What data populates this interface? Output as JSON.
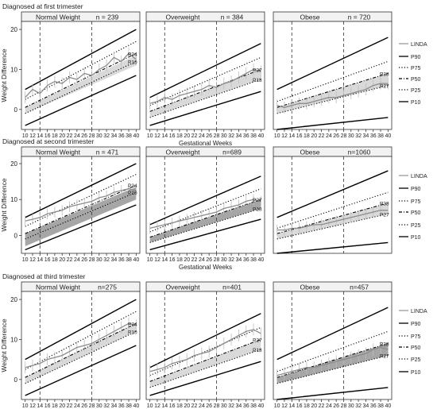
{
  "figure": {
    "ylabel": "Weight Difference",
    "xlabel": "Gestational Weeks"
  },
  "legend": {
    "items": [
      {
        "label": "LINDA",
        "style": "linda",
        "color": "#999999"
      },
      {
        "label": "P90",
        "style": "solid",
        "color": "#000000"
      },
      {
        "label": "P75",
        "style": "dotted",
        "color": "#000000"
      },
      {
        "label": "P50",
        "style": "dashdot",
        "color": "#000000"
      },
      {
        "label": "P25",
        "style": "dotted",
        "color": "#000000"
      },
      {
        "label": "P10",
        "style": "solid",
        "color": "#000000"
      }
    ]
  },
  "colors": {
    "band_light": "#d9d9d9",
    "band_dark": "#a6a6a6",
    "linda": "#8c8c8c",
    "linda_error": "#bdbdbd",
    "header_bg": "#f2f2f2"
  },
  "chart_data": [
    {
      "type": "line",
      "row_title": "Diagnosed at first trimester",
      "panel_title": "Normal Weight",
      "n_label": "n = 239",
      "x": [
        10,
        12,
        14,
        16,
        18,
        20,
        22,
        24,
        26,
        28,
        30,
        32,
        34,
        36,
        38,
        40
      ],
      "ylim": [
        -5,
        22
      ],
      "yticks": [
        "20",
        "10",
        "0"
      ],
      "vlines": [
        14,
        28
      ],
      "percentiles": {
        "P90": [
          5,
          20
        ],
        "P75": [
          2.5,
          17
        ],
        "P50": [
          0.5,
          14
        ],
        "P25": [
          -1,
          12
        ],
        "P10": [
          -4,
          8.5
        ]
      },
      "band": {
        "lower": [
          -1,
          11
        ],
        "upper": [
          0.5,
          13.5
        ],
        "shade": "light"
      },
      "linda": [
        3,
        5,
        4,
        6,
        7,
        6.5,
        8,
        7.5,
        9,
        8.5,
        10,
        11,
        13,
        12,
        14,
        12.5
      ],
      "end_labels": [
        "P34",
        "P10"
      ],
      "show_xticks": true
    },
    {
      "type": "line",
      "row_title": "",
      "panel_title": "Overweight",
      "n_label": "n = 384",
      "x": [
        10,
        12,
        14,
        16,
        18,
        20,
        22,
        24,
        26,
        28,
        30,
        32,
        34,
        36,
        38,
        40
      ],
      "ylim": [
        -5,
        22
      ],
      "yticks": [],
      "vlines": [
        14,
        28
      ],
      "percentiles": {
        "P90": [
          3,
          16.5
        ],
        "P75": [
          1,
          13
        ],
        "P50": [
          -0.5,
          10
        ],
        "P25": [
          -2,
          7.5
        ],
        "P10": [
          -4,
          4.5
        ]
      },
      "band": {
        "lower": [
          -2,
          7.5
        ],
        "upper": [
          -0.5,
          10
        ],
        "shade": "light"
      },
      "linda": [
        1.5,
        2,
        3,
        2.5,
        3.5,
        4,
        4.5,
        5,
        6,
        5.5,
        6.5,
        7,
        8,
        9,
        10,
        9.5
      ],
      "end_labels": [
        "P27",
        "P18"
      ],
      "show_xticks": true
    },
    {
      "type": "line",
      "row_title": "",
      "panel_title": "Obese",
      "n_label": "n = 720",
      "x": [
        10,
        12,
        14,
        16,
        18,
        20,
        22,
        24,
        26,
        28,
        30,
        32,
        34,
        36,
        38,
        40
      ],
      "ylim": [
        -5,
        22
      ],
      "yticks": [],
      "vlines": [
        14,
        28
      ],
      "percentiles": {
        "P90": [
          5,
          18
        ],
        "P75": [
          2,
          12
        ],
        "P50": [
          0.5,
          9
        ],
        "P25": [
          -1,
          6
        ],
        "P10": [
          -5,
          -2
        ]
      },
      "band": {
        "lower": [
          -1,
          6
        ],
        "upper": [
          0.5,
          9
        ],
        "shade": "light"
      },
      "linda": [
        1,
        0.5,
        1,
        1.5,
        1.5,
        2,
        2.5,
        3,
        3,
        3.5,
        4,
        4.5,
        5,
        6,
        6.5,
        6.5
      ],
      "end_labels": [
        "P38",
        "P27"
      ],
      "show_xticks": true
    },
    {
      "type": "line",
      "row_title": "Diagnosed at second trimester",
      "panel_title": "Normal Weight",
      "n_label": "n = 471",
      "x": [
        10,
        12,
        14,
        16,
        18,
        20,
        22,
        24,
        26,
        28,
        30,
        32,
        34,
        36,
        38,
        40
      ],
      "ylim": [
        -5,
        22
      ],
      "yticks": [
        "20",
        "10",
        "0"
      ],
      "vlines": [
        14,
        28
      ],
      "percentiles": {
        "P90": [
          5,
          20
        ],
        "P75": [
          2.5,
          17
        ],
        "P50": [
          0.5,
          14
        ],
        "P25": [
          -1,
          12
        ],
        "P10": [
          -4,
          8.5
        ]
      },
      "band": {
        "lower": [
          -3,
          10
        ],
        "upper": [
          0.5,
          13.5
        ],
        "shade": "dark"
      },
      "linda": [
        4,
        4.5,
        5,
        6,
        6.5,
        7,
        8,
        8.5,
        9,
        9.5,
        10.5,
        11,
        12,
        12.5,
        13,
        12.5
      ],
      "end_labels": [
        "P34",
        "P10"
      ],
      "show_xticks": true
    },
    {
      "type": "line",
      "row_title": "",
      "panel_title": "Overweight",
      "n_label": "n=689",
      "x": [
        10,
        12,
        14,
        16,
        18,
        20,
        22,
        24,
        26,
        28,
        30,
        32,
        34,
        36,
        38,
        40
      ],
      "ylim": [
        -5,
        22
      ],
      "yticks": [],
      "vlines": [
        14,
        28
      ],
      "percentiles": {
        "P90": [
          3,
          16.5
        ],
        "P75": [
          1,
          13
        ],
        "P50": [
          -0.5,
          10
        ],
        "P25": [
          -2,
          7.5
        ],
        "P10": [
          -4,
          4.5
        ]
      },
      "band": {
        "lower": [
          -2,
          7.5
        ],
        "upper": [
          -0.5,
          10
        ],
        "shade": "dark"
      },
      "linda": [
        2,
        2.5,
        3,
        3.5,
        4,
        4.5,
        5,
        5.5,
        6,
        6.5,
        7.5,
        8,
        8.5,
        9.5,
        10,
        9.5
      ],
      "end_labels": [
        "P27",
        "P18"
      ],
      "show_xticks": true
    },
    {
      "type": "line",
      "row_title": "",
      "panel_title": "Obese",
      "n_label": "n=1060",
      "x": [
        10,
        12,
        14,
        16,
        18,
        20,
        22,
        24,
        26,
        28,
        30,
        32,
        34,
        36,
        38,
        40
      ],
      "ylim": [
        -5,
        22
      ],
      "yticks": [],
      "vlines": [
        14,
        28
      ],
      "percentiles": {
        "P90": [
          5,
          18
        ],
        "P75": [
          2,
          12
        ],
        "P50": [
          0.5,
          9
        ],
        "P25": [
          -1,
          6
        ],
        "P10": [
          -5,
          -2
        ]
      },
      "band": {
        "lower": [
          -1,
          6
        ],
        "upper": [
          0.5,
          9
        ],
        "shade": "light"
      },
      "linda": [
        1.5,
        1.5,
        2,
        2,
        2.5,
        3,
        3,
        3.5,
        4,
        4.5,
        5,
        5.5,
        6,
        6.5,
        7,
        7
      ],
      "end_labels": [
        "P38",
        "P27"
      ],
      "show_xticks": false
    },
    {
      "type": "line",
      "row_title": "Diagnosed at third trimester",
      "panel_title": "Normal Weight",
      "n_label": "n=275",
      "x": [
        10,
        12,
        14,
        16,
        18,
        20,
        22,
        24,
        26,
        28,
        30,
        32,
        34,
        36,
        38,
        40
      ],
      "ylim": [
        -5,
        22
      ],
      "yticks": [
        "20",
        "10",
        "0"
      ],
      "vlines": [
        14,
        28
      ],
      "percentiles": {
        "P90": [
          5,
          20
        ],
        "P75": [
          2.5,
          17
        ],
        "P50": [
          0.5,
          14
        ],
        "P25": [
          -1,
          12
        ],
        "P10": [
          -4,
          8.5
        ]
      },
      "band": {
        "lower": [
          -1,
          12
        ],
        "upper": [
          0.5,
          14
        ],
        "shade": "light"
      },
      "linda": [
        3,
        3.5,
        4,
        5,
        5.5,
        6,
        7,
        8,
        8.5,
        9,
        10,
        11,
        12,
        13,
        14,
        13.5
      ],
      "end_labels": [
        "P34",
        "P10"
      ],
      "show_xticks": true
    },
    {
      "type": "line",
      "row_title": "",
      "panel_title": "Overweight",
      "n_label": "n=401",
      "x": [
        10,
        12,
        14,
        16,
        18,
        20,
        22,
        24,
        26,
        28,
        30,
        32,
        34,
        36,
        38,
        40
      ],
      "ylim": [
        -5,
        22
      ],
      "yticks": [],
      "vlines": [
        14,
        28
      ],
      "percentiles": {
        "P90": [
          3,
          16.5
        ],
        "P75": [
          1,
          13
        ],
        "P50": [
          -0.5,
          10
        ],
        "P25": [
          -2,
          7.5
        ],
        "P10": [
          -4,
          4.5
        ]
      },
      "band": {
        "lower": [
          -2,
          7.5
        ],
        "upper": [
          -0.5,
          10
        ],
        "shade": "light"
      },
      "linda": [
        2,
        2.5,
        3,
        4,
        4.5,
        5,
        6,
        6.5,
        7,
        8,
        9,
        10,
        11,
        12,
        12.5,
        11.5
      ],
      "end_labels": [
        "P27",
        "P18"
      ],
      "show_xticks": true
    },
    {
      "type": "line",
      "row_title": "",
      "panel_title": "Obese",
      "n_label": "n=457",
      "x": [
        10,
        12,
        14,
        16,
        18,
        20,
        22,
        24,
        26,
        28,
        30,
        32,
        34,
        36,
        38,
        40
      ],
      "ylim": [
        -5,
        22
      ],
      "yticks": [],
      "vlines": [
        14,
        28
      ],
      "percentiles": {
        "P90": [
          5,
          18
        ],
        "P75": [
          2,
          12
        ],
        "P50": [
          0.5,
          9
        ],
        "P25": [
          -1,
          6
        ],
        "P10": [
          -5,
          -2
        ]
      },
      "band": {
        "lower": [
          -1,
          6
        ],
        "upper": [
          0.5,
          9
        ],
        "shade": "dark"
      },
      "linda": [
        1,
        1.5,
        2,
        2.5,
        3,
        3,
        3.5,
        4,
        4.5,
        5,
        5.5,
        6,
        6.5,
        7.5,
        8,
        7.5
      ],
      "end_labels": [
        "P38",
        "P27"
      ],
      "show_xticks": true
    }
  ]
}
